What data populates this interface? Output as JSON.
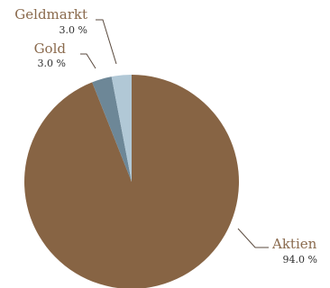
{
  "chart_data": {
    "type": "pie",
    "title": "",
    "slices": [
      {
        "label": "Aktien",
        "value": 94.0,
        "value_label": "94.0 %",
        "color": "#876444"
      },
      {
        "label": "Gold",
        "value": 3.0,
        "value_label": "3.0 %",
        "color": "#6d8797"
      },
      {
        "label": "Geldmarkt",
        "value": 3.0,
        "value_label": "3.0 %",
        "color": "#b1c8d6"
      }
    ],
    "label_color": "#8a6a4d",
    "legend": "none"
  }
}
